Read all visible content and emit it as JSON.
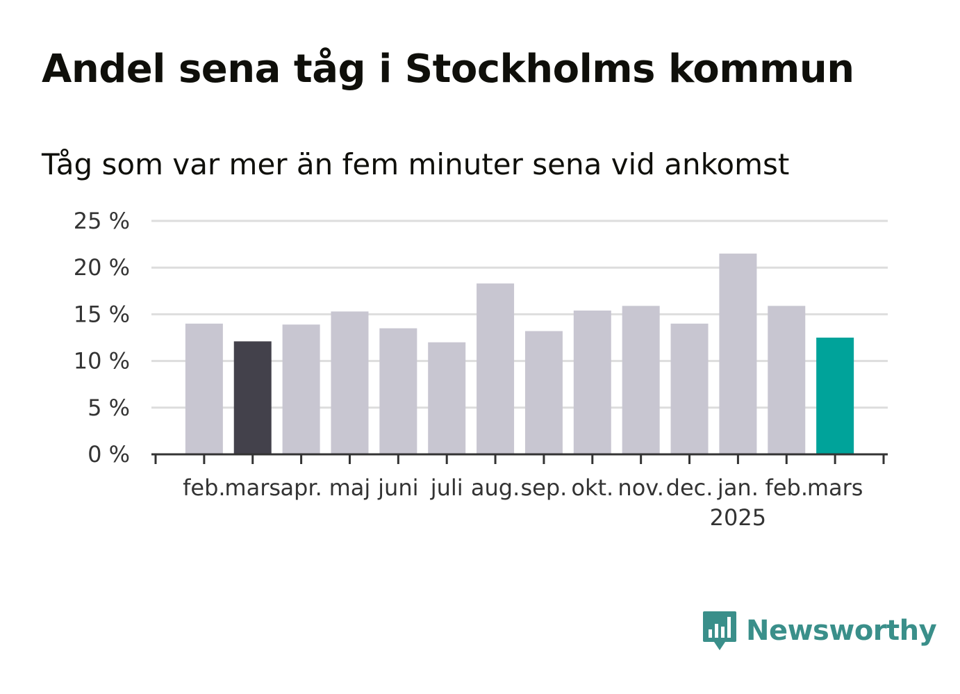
{
  "chart_data": {
    "type": "bar",
    "title": "Andel sena tåg i Stockholms kommun",
    "subtitle": "Tåg som var mer än fem minuter sena vid ankomst",
    "categories": [
      "feb.",
      "mars",
      "apr.",
      "maj",
      "juni",
      "juli",
      "aug.",
      "sep.",
      "okt.",
      "nov.",
      "dec.",
      "jan.",
      "feb.",
      "mars"
    ],
    "category_sublabels": [
      "",
      "",
      "",
      "",
      "",
      "",
      "",
      "",
      "",
      "",
      "",
      "2025",
      "",
      ""
    ],
    "values": [
      14.0,
      12.1,
      13.9,
      15.3,
      13.5,
      12.0,
      18.3,
      13.2,
      15.4,
      15.9,
      14.0,
      21.5,
      15.9,
      12.5
    ],
    "y_ticks": [
      "0 %",
      "5 %",
      "10 %",
      "15 %",
      "20 %",
      "25 %"
    ],
    "ylim": [
      0,
      25
    ],
    "grid": true,
    "colors": {
      "default": "#c8c6d1",
      "previous_year": "#43414b",
      "latest": "#00a39a",
      "gridline": "#dddddd",
      "axis": "#333333"
    },
    "highlight": {
      "1": "previous_year",
      "13": "latest"
    }
  },
  "brand": {
    "name": "Newsworthy",
    "icon": "newsworthy-logo-icon",
    "color": "#3a8f8a"
  }
}
